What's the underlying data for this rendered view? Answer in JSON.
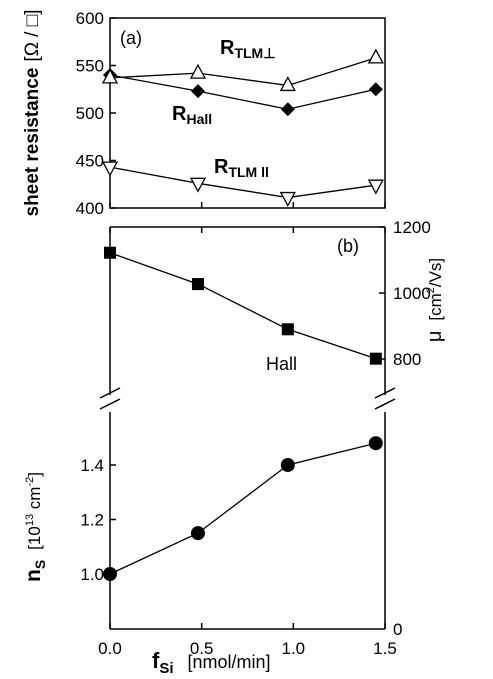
{
  "chart_data": [
    {
      "panel": "(a)",
      "type": "line",
      "ylabel": "sheet resistance",
      "yunit": "[Ω / □]",
      "ylim": [
        400,
        600
      ],
      "yticks": [
        "400",
        "450",
        "500",
        "550",
        "600"
      ],
      "x": [
        0.0,
        0.48,
        0.97,
        1.45
      ],
      "series": [
        {
          "name": "R_TLM⊥",
          "marker": "triangle-up-open",
          "values": [
            537,
            542,
            529,
            558
          ]
        },
        {
          "name": "R_Hall",
          "marker": "diamond-filled",
          "values": [
            540,
            523,
            504,
            525
          ]
        },
        {
          "name": "R_TLM ll",
          "marker": "triangle-down-open",
          "values": [
            443,
            426,
            411,
            424
          ]
        }
      ]
    },
    {
      "panel": "(b)",
      "type": "line",
      "annotation": "Hall",
      "xlabel": "f_Si [nmol/min]",
      "xlim": [
        0.0,
        1.5
      ],
      "xticks": [
        "0.0",
        "0.5",
        "1.0",
        "1.5"
      ],
      "x": [
        0.0,
        0.48,
        0.97,
        1.45
      ],
      "series": [
        {
          "name": "μ",
          "marker": "square-filled",
          "axis": "right",
          "values": [
            1122,
            1027,
            890,
            801
          ]
        },
        {
          "name": "n_S",
          "marker": "circle-filled",
          "axis": "left",
          "values": [
            1.0,
            1.15,
            1.4,
            1.48
          ]
        }
      ],
      "ylabel_right": "μ",
      "yunit_right": "[cm²/Vs]",
      "ylim_right": [
        800,
        1200
      ],
      "yticks_right": [
        "800",
        "1000",
        "1200"
      ],
      "yticks_right_bottom": [
        "0"
      ],
      "ylabel_left": "n_S",
      "yunit_left": "[10¹³ cm⁻²]",
      "ylim_left": [
        1.0,
        1.4
      ],
      "yticks_left": [
        "1.0",
        "1.2",
        "1.4"
      ]
    }
  ],
  "labels": {
    "panel_a": "(a)",
    "panel_b": "(b)",
    "sheet_resistance": "sheet resistance",
    "ohm_unit": "[Ω / □]",
    "r_letter": "R",
    "tlm_perp_sub": "TLM⊥",
    "hall_sub": "Hall",
    "tlm_par_sub": "TLM ll",
    "hall_text": "Hall",
    "mu": "μ",
    "mu_unit_a": "[cm",
    "mu_unit_sup": "2",
    "mu_unit_b": "/Vs]",
    "n_letter": "n",
    "n_sub": "S",
    "n_unit_a": "[10",
    "n_unit_sup13": "13",
    "n_unit_b": " cm",
    "n_unit_sup": "-2",
    "n_unit_c": "]",
    "f_letter": "f",
    "f_sub": "Si",
    "f_unit": "[nmol/min]"
  }
}
